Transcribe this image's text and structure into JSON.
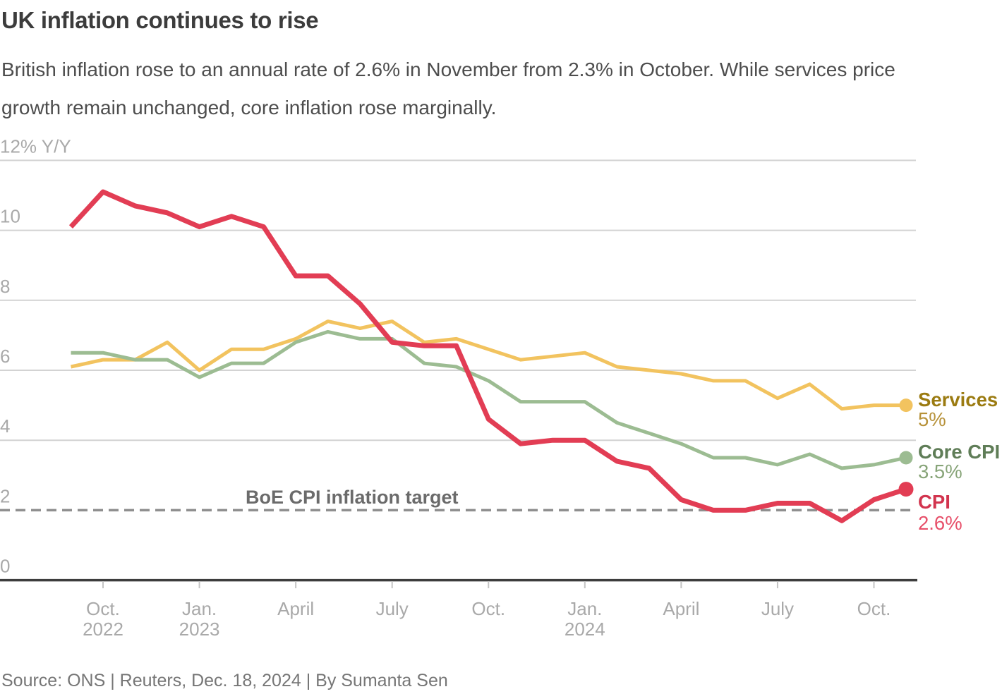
{
  "header": {
    "title": "UK inflation continues to rise",
    "subtitle": "British inflation rose to an annual rate of 2.6% in November from 2.3% in October. While services price growth remain unchanged, core inflation rose marginally."
  },
  "source": "Source: ONS | Reuters, Dec. 18, 2024 | By Sumanta Sen",
  "colors": {
    "services_line": "#f2c35f",
    "core_cpi_line": "#9cbc92",
    "cpi_line": "#e23d54",
    "services_label": "#9b7b11",
    "services_value": "#b7923a",
    "core_cpi_label": "#5f7d57",
    "core_cpi_value": "#87a478",
    "cpi_label": "#d2344e",
    "cpi_value": "#e7506a",
    "gridline": "#d3d3d3",
    "axis": "#3d3d3d",
    "tick": "#c4c4c4",
    "axis_label": "#a9a9a9",
    "target_line": "#8f8f8f",
    "target_label": "#6b6b6b"
  },
  "chart_data": {
    "type": "line",
    "title": "UK inflation continues to rise",
    "ylabel": "% Y/Y",
    "ylim": [
      0,
      12
    ],
    "yticks": [
      {
        "value": 12,
        "label": "12% Y/Y"
      },
      {
        "value": 10,
        "label": "10"
      },
      {
        "value": 8,
        "label": "8"
      },
      {
        "value": 6,
        "label": "6"
      },
      {
        "value": 4,
        "label": "4"
      },
      {
        "value": 2,
        "label": "2"
      },
      {
        "value": 0,
        "label": "0"
      }
    ],
    "grid": "horizontal",
    "legend_position": "right-of-line-ends",
    "x": [
      "Sep. 2022",
      "Oct. 2022",
      "Nov. 2022",
      "Dec. 2022",
      "Jan. 2023",
      "Feb. 2023",
      "Mar. 2023",
      "Apr. 2023",
      "May 2023",
      "Jun. 2023",
      "Jul. 2023",
      "Aug. 2023",
      "Sep. 2023",
      "Oct. 2023",
      "Nov. 2023",
      "Dec. 2023",
      "Jan. 2024",
      "Feb. 2024",
      "Mar. 2024",
      "Apr. 2024",
      "May 2024",
      "Jun. 2024",
      "Jul. 2024",
      "Aug. 2024",
      "Sep. 2024",
      "Oct. 2024",
      "Nov. 2024"
    ],
    "xticks": [
      {
        "index": 1,
        "month": "Oct.",
        "year": "2022"
      },
      {
        "index": 4,
        "month": "Jan.",
        "year": "2023"
      },
      {
        "index": 7,
        "month": "April",
        "year": ""
      },
      {
        "index": 10,
        "month": "July",
        "year": ""
      },
      {
        "index": 13,
        "month": "Oct.",
        "year": ""
      },
      {
        "index": 16,
        "month": "Jan.",
        "year": "2024"
      },
      {
        "index": 19,
        "month": "April",
        "year": ""
      },
      {
        "index": 22,
        "month": "July",
        "year": ""
      },
      {
        "index": 25,
        "month": "Oct.",
        "year": ""
      }
    ],
    "series": [
      {
        "name": "Services",
        "end_label": "5%",
        "values": [
          6.1,
          6.3,
          6.3,
          6.8,
          6.0,
          6.6,
          6.6,
          6.9,
          7.4,
          7.2,
          7.4,
          6.8,
          6.9,
          6.6,
          6.3,
          6.4,
          6.5,
          6.1,
          6.0,
          5.9,
          5.7,
          5.7,
          5.2,
          5.6,
          4.9,
          5.0,
          5.0
        ]
      },
      {
        "name": "Core CPI",
        "end_label": "3.5%",
        "values": [
          6.5,
          6.5,
          6.3,
          6.3,
          5.8,
          6.2,
          6.2,
          6.8,
          7.1,
          6.9,
          6.9,
          6.2,
          6.1,
          5.7,
          5.1,
          5.1,
          5.1,
          4.5,
          4.2,
          3.9,
          3.5,
          3.5,
          3.3,
          3.6,
          3.2,
          3.3,
          3.5
        ]
      },
      {
        "name": "CPI",
        "end_label": "2.6%",
        "values": [
          10.1,
          11.1,
          10.7,
          10.5,
          10.1,
          10.4,
          10.1,
          8.7,
          8.7,
          7.9,
          6.8,
          6.7,
          6.7,
          4.6,
          3.9,
          4.0,
          4.0,
          3.4,
          3.2,
          2.3,
          2.0,
          2.0,
          2.2,
          2.2,
          1.7,
          2.3,
          2.6
        ]
      }
    ],
    "target_line": {
      "label": "BoE CPI inflation target",
      "value": 2
    }
  }
}
